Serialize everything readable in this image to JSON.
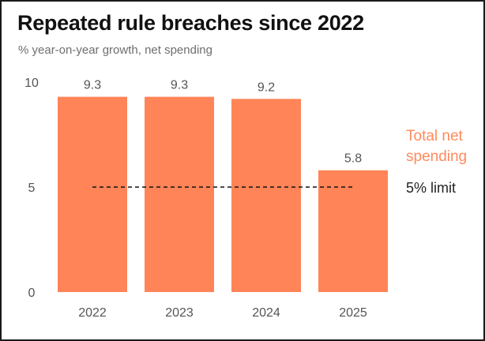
{
  "title": "Repeated rule breaches since 2022",
  "subtitle": "% year-on-year growth, net spending",
  "colors": {
    "bar": "#ff8458",
    "series_label": "#ff8a5c",
    "axis_text": "#555555",
    "limit_line": "#111111"
  },
  "chart_data": {
    "type": "bar",
    "title": "Repeated rule breaches since 2022",
    "subtitle": "% year-on-year growth, net spending",
    "categories": [
      "2022",
      "2023",
      "2024",
      "2025"
    ],
    "series": [
      {
        "name": "Total net spending",
        "values": [
          9.3,
          9.3,
          9.2,
          5.8
        ]
      }
    ],
    "data_labels": [
      "9.3",
      "9.3",
      "9.2",
      "5.8"
    ],
    "yticks": [
      "0",
      "5",
      "10"
    ],
    "ylim": [
      0,
      10
    ],
    "grid": false,
    "reference_line": {
      "label": "5% limit",
      "value": 5,
      "style": "dashed"
    },
    "series_label_placement": "right"
  }
}
